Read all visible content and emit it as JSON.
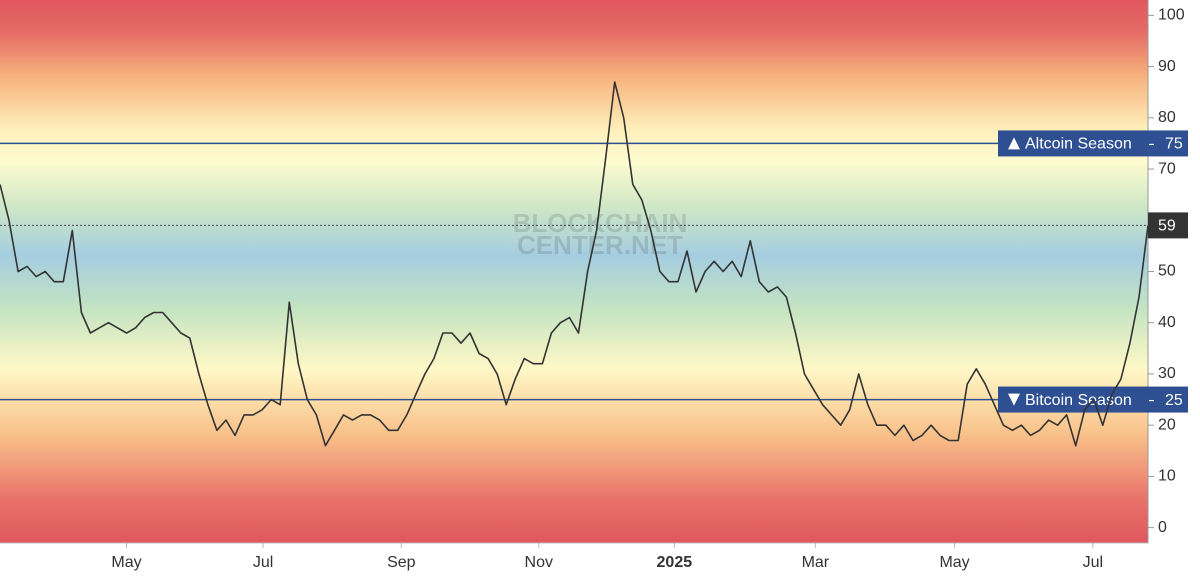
{
  "chart_data": {
    "type": "line",
    "watermark": [
      "BLOCKCHAIN",
      "CENTER.NET"
    ],
    "color": "#333333",
    "values": [
      67,
      60,
      50,
      51,
      49,
      50,
      48,
      48,
      58,
      42,
      38,
      39,
      40,
      39,
      38,
      39,
      41,
      42,
      42,
      40,
      38,
      37,
      30,
      24,
      19,
      21,
      18,
      22,
      22,
      23,
      25,
      24,
      44,
      32,
      25,
      22,
      16,
      19,
      22,
      21,
      22,
      22,
      21,
      19,
      19,
      22,
      26,
      30,
      33,
      38,
      38,
      36,
      38,
      34,
      33,
      30,
      24,
      29,
      33,
      32,
      32,
      38,
      40,
      41,
      38,
      50,
      58,
      72,
      87,
      80,
      67,
      64,
      58,
      50,
      48,
      48,
      54,
      46,
      50,
      52,
      50,
      52,
      49,
      56,
      48,
      46,
      47,
      45,
      38,
      30,
      27,
      24,
      22,
      20,
      23,
      30,
      24,
      20,
      20,
      18,
      20,
      17,
      18,
      20,
      18,
      17,
      17,
      28,
      31,
      28,
      24,
      20,
      19,
      20,
      18,
      19,
      21,
      20,
      22,
      16,
      23,
      25,
      20,
      26,
      29,
      36,
      45,
      59
    ],
    "xlim": [
      0,
      127
    ],
    "xticks": [
      {
        "value": 14,
        "label": "May"
      },
      {
        "value": 29.1,
        "label": "Jul"
      },
      {
        "value": 44.4,
        "label": "Sep"
      },
      {
        "value": 59.6,
        "label": "Nov"
      },
      {
        "value": 74.6,
        "label": "2025"
      },
      {
        "value": 90.2,
        "label": "Mar"
      },
      {
        "value": 105.6,
        "label": "May"
      },
      {
        "value": 120.9,
        "label": "Jul"
      }
    ],
    "ylim": [
      -3,
      103
    ],
    "yticks": [
      0,
      10,
      20,
      30,
      40,
      50,
      60,
      70,
      80,
      90,
      100
    ],
    "thresholds": [
      {
        "label": "Altcoin Season",
        "value": 75,
        "direction": "up",
        "color": "#2e4f92"
      },
      {
        "label": "Bitcoin Season",
        "value": 25,
        "direction": "down",
        "color": "#2e4f92"
      }
    ]
  }
}
